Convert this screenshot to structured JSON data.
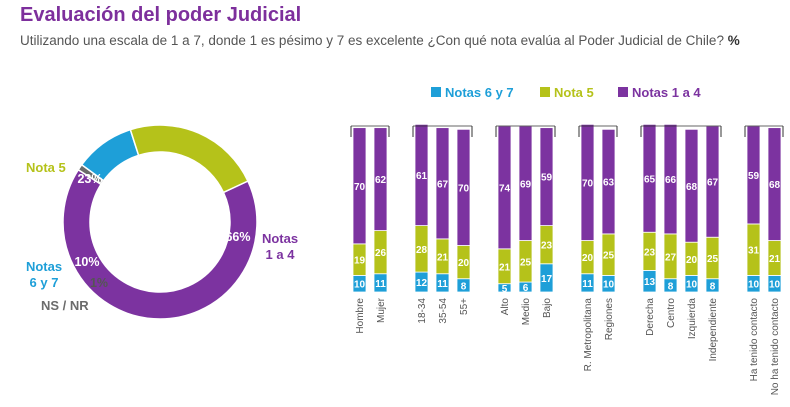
{
  "header": {
    "title": "Evaluación del poder Judicial",
    "subtitle": "Utilizando una escala de 1 a 7, donde 1 es pésimo y 7 es excelente ¿Con qué nota evalúa al Poder Judicial de Chile?",
    "unit": "%"
  },
  "colors": {
    "notas_6_7": "#1e9fd8",
    "nota_5": "#b5c21a",
    "notas_1_4": "#7c33a0",
    "ns_nr": "#6b6b6b"
  },
  "chart_data": [
    {
      "type": "pie",
      "variant": "donut",
      "slices": [
        {
          "label": "Notas 1 a 4",
          "value": 66,
          "value_label": "66%",
          "color": "#7c33a0"
        },
        {
          "label": "Nota 5",
          "value": 23,
          "value_label": "23%",
          "color": "#b5c21a"
        },
        {
          "label": "Notas 6 y 7",
          "value": 10,
          "value_label": "10%",
          "color": "#1e9fd8"
        },
        {
          "label": "NS / NR",
          "value": 1,
          "value_label": "1%",
          "color": "#6b6b6b"
        }
      ]
    },
    {
      "type": "bar",
      "stacked": true,
      "legend_position": "top",
      "ylim": [
        0,
        100
      ],
      "categories": [
        "Hombre",
        "Mujer",
        "18-34",
        "35-54",
        "55+",
        "Alto",
        "Medio",
        "Bajo",
        "R. Metropolitana",
        "Regiones",
        "Derecha",
        "Centro",
        "Izquierda",
        "Independiente",
        "Ha tenido contacto",
        "No ha tenido contacto"
      ],
      "groups": [
        [
          "Hombre",
          "Mujer"
        ],
        [
          "18-34",
          "35-54",
          "55+"
        ],
        [
          "Alto",
          "Medio",
          "Bajo"
        ],
        [
          "R. Metropolitana",
          "Regiones"
        ],
        [
          "Derecha",
          "Centro",
          "Izquierda",
          "Independiente"
        ],
        [
          "Ha tenido contacto",
          "No ha tenido contacto"
        ]
      ],
      "series": [
        {
          "name": "Notas 6 y 7",
          "color": "#1e9fd8",
          "values": [
            10,
            11,
            12,
            11,
            8,
            5,
            6,
            17,
            11,
            10,
            13,
            8,
            10,
            8,
            10,
            10
          ]
        },
        {
          "name": "Nota 5",
          "color": "#b5c21a",
          "values": [
            19,
            26,
            28,
            21,
            20,
            21,
            25,
            23,
            20,
            25,
            23,
            27,
            20,
            25,
            31,
            21
          ]
        },
        {
          "name": "Notas 1 a 4",
          "color": "#7c33a0",
          "values": [
            70,
            62,
            61,
            67,
            70,
            74,
            69,
            59,
            70,
            63,
            65,
            66,
            68,
            67,
            59,
            68
          ]
        }
      ]
    }
  ]
}
